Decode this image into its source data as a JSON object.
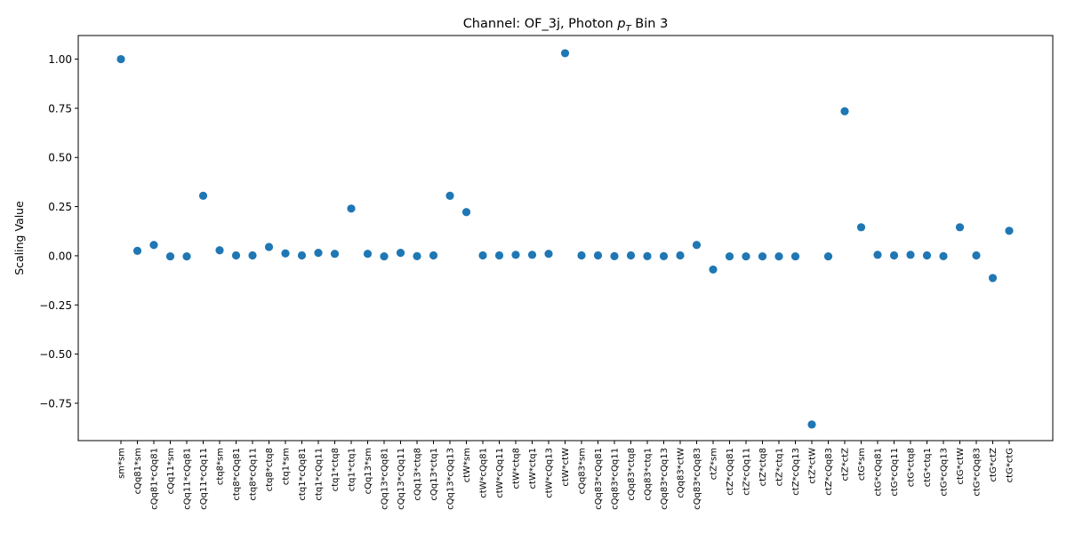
{
  "chart_data": {
    "type": "scatter",
    "title_prefix": "Channel: OF_3j, Photon ",
    "title_p": "p",
    "title_sub": "T",
    "title_suffix": " Bin 3",
    "xlabel": "",
    "ylabel": "Scaling Value",
    "ylim": [
      -0.94,
      1.12
    ],
    "yticks": [
      -0.75,
      -0.5,
      -0.25,
      0.0,
      0.25,
      0.5,
      0.75,
      1.0
    ],
    "ytick_labels": [
      "−0.75",
      "−0.50",
      "−0.25",
      "0.00",
      "0.25",
      "0.50",
      "0.75",
      "1.00"
    ],
    "grid": false,
    "marker_color": "#1f77b4",
    "categories": [
      "sm*sm",
      "cQq81*sm",
      "cQq81*cQq81",
      "cQq11*sm",
      "cQq11*cQq81",
      "cQq11*cQq11",
      "ctq8*sm",
      "ctq8*cQq81",
      "ctq8*cQq11",
      "ctq8*ctq8",
      "ctq1*sm",
      "ctq1*cQq81",
      "ctq1*cQq11",
      "ctq1*ctq8",
      "ctq1*ctq1",
      "cQq13*sm",
      "cQq13*cQq81",
      "cQq13*cQq11",
      "cQq13*ctq8",
      "cQq13*ctq1",
      "cQq13*cQq13",
      "ctW*sm",
      "ctW*cQq81",
      "ctW*cQq11",
      "ctW*ctq8",
      "ctW*ctq1",
      "ctW*cQq13",
      "ctW*ctW",
      "cQq83*sm",
      "cQq83*cQq81",
      "cQq83*cQq11",
      "cQq83*ctq8",
      "cQq83*ctq1",
      "cQq83*cQq13",
      "cQq83*ctW",
      "cQq83*cQq83",
      "ctZ*sm",
      "ctZ*cQq81",
      "ctZ*cQq11",
      "ctZ*ctq8",
      "ctZ*ctq1",
      "ctZ*cQq13",
      "ctZ*ctW",
      "ctZ*cQq83",
      "ctZ*ctZ",
      "ctG*sm",
      "ctG*cQq81",
      "ctG*cQq11",
      "ctG*ctq8",
      "ctG*ctq1",
      "ctG*cQq13",
      "ctG*ctW",
      "ctG*cQq83",
      "ctG*ctZ",
      "ctG*ctG"
    ],
    "values": [
      1.0,
      0.025,
      0.055,
      -0.003,
      -0.003,
      0.305,
      0.028,
      0.002,
      0.002,
      0.045,
      0.012,
      0.002,
      0.015,
      0.01,
      0.24,
      0.01,
      -0.003,
      0.015,
      -0.002,
      0.002,
      0.305,
      0.222,
      0.002,
      0.002,
      0.005,
      0.005,
      0.01,
      1.03,
      0.002,
      0.002,
      -0.002,
      0.002,
      -0.002,
      -0.002,
      0.002,
      0.055,
      -0.07,
      -0.003,
      -0.003,
      -0.003,
      -0.003,
      -0.003,
      -0.858,
      -0.003,
      0.735,
      0.145,
      0.005,
      0.002,
      0.005,
      0.002,
      -0.002,
      0.145,
      0.002,
      -0.113,
      0.127
    ]
  }
}
